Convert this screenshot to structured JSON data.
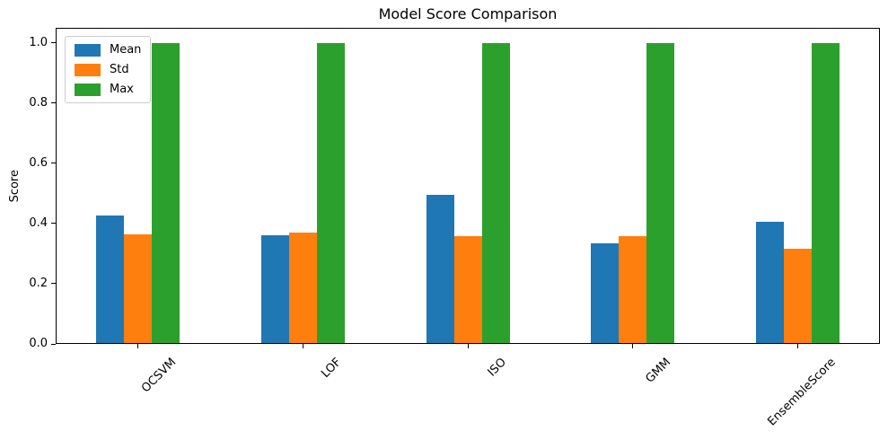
{
  "chart_data": {
    "type": "bar",
    "title": "Model Score Comparison",
    "xlabel": "",
    "ylabel": "Score",
    "categories": [
      "OCSVM",
      "LOF",
      "ISO",
      "GMM",
      "EnsembleScore"
    ],
    "series": [
      {
        "name": "Mean",
        "color": "#1f77b4",
        "values": [
          0.427,
          0.362,
          0.495,
          0.333,
          0.405
        ]
      },
      {
        "name": "Std",
        "color": "#ff7f0e",
        "values": [
          0.363,
          0.369,
          0.357,
          0.359,
          0.316
        ]
      },
      {
        "name": "Max",
        "color": "#2ca02c",
        "values": [
          1.0,
          1.0,
          1.0,
          1.0,
          1.0
        ]
      }
    ],
    "ylim": [
      0,
      1.05
    ],
    "yticks": [
      0.0,
      0.2,
      0.4,
      0.6,
      0.8,
      1.0
    ],
    "y_tick_format_decimals": 1,
    "x_tick_rotation": 45,
    "grid": false,
    "legend_position": "upper left",
    "axis_color": "#000000",
    "text_color": "#000000",
    "legend_border_color": "#cccccc",
    "background_color": "#ffffff"
  }
}
